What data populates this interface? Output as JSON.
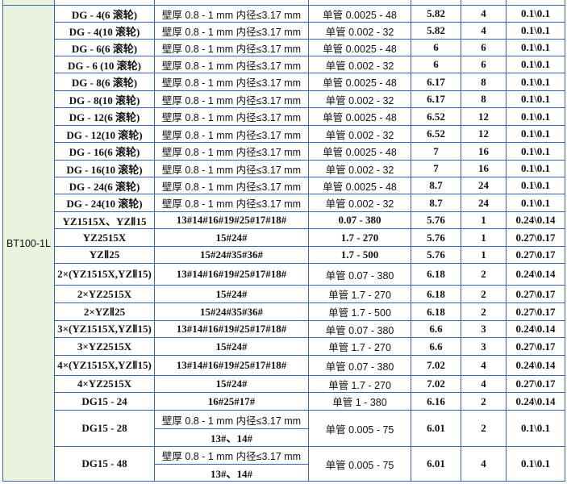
{
  "group_label": "BT100-1L",
  "rows": [
    {
      "model": "DG - 4(6 滚轮)",
      "spec": "壁厚 0.8 - 1 mm   内径≤3.17 mm",
      "range": "单管 0.0025 - 48",
      "v1": "5.82",
      "v2": "4",
      "v3": "0.1\\0.1"
    },
    {
      "model": "DG - 4(10 滚轮)",
      "spec": "壁厚 0.8 - 1 mm   内径≤3.17 mm",
      "range": "单管 0.002 - 32",
      "v1": "5.82",
      "v2": "4",
      "v3": "0.1\\0.1"
    },
    {
      "model": "DG - 6(6 滚轮)",
      "spec": "壁厚 0.8 - 1 mm   内径≤3.17 mm",
      "range": "单管 0.0025 - 48",
      "v1": "6",
      "v2": "6",
      "v3": "0.1\\0.1"
    },
    {
      "model": "DG - 6 (10 滚轮)",
      "spec": "壁厚 0.8 - 1 mm   内径≤3.17 mm",
      "range": "单管 0.002 - 32",
      "v1": "6",
      "v2": "6",
      "v3": "0.1\\0.1"
    },
    {
      "model": "DG - 8(6 滚轮)",
      "spec": "壁厚 0.8 - 1 mm   内径≤3.17 mm",
      "range": "单管 0.0025 - 48",
      "v1": "6.17",
      "v2": "8",
      "v3": "0.1\\0.1"
    },
    {
      "model": "DG - 8(10 滚轮)",
      "spec": "壁厚 0.8 - 1 mm   内径≤3.17 mm",
      "range": "单管 0.002 - 32",
      "v1": "6.17",
      "v2": "8",
      "v3": "0.1\\0.1"
    },
    {
      "model": "DG - 12(6 滚轮)",
      "spec": "壁厚 0.8 - 1 mm   内径≤3.17 mm",
      "range": "单管 0.0025 - 48",
      "v1": "6.52",
      "v2": "12",
      "v3": "0.1\\0.1"
    },
    {
      "model": "DG - 12(10 滚轮)",
      "spec": "壁厚 0.8 - 1 mm   内径≤3.17 mm",
      "range": "单管 0.002 - 32",
      "v1": "6.52",
      "v2": "12",
      "v3": "0.1\\0.1"
    },
    {
      "model": "DG - 16(6 滚轮)",
      "spec": "壁厚 0.8 - 1 mm   内径≤3.17 mm",
      "range": "单管 0.0025 - 48",
      "v1": "7",
      "v2": "16",
      "v3": "0.1\\0.1"
    },
    {
      "model": "DG - 16(10 滚轮)",
      "spec": "壁厚 0.8 - 1 mm   内径≤3.17 mm",
      "range": "单管 0.002 - 32",
      "v1": "7",
      "v2": "16",
      "v3": "0.1\\0.1"
    },
    {
      "model": "DG - 24(6 滚轮)",
      "spec": "壁厚 0.8 - 1 mm   内径≤3.17 mm",
      "range": "单管 0.0025 - 48",
      "v1": "8.7",
      "v2": "24",
      "v3": "0.1\\0.1"
    },
    {
      "model": "DG - 24(10 滚轮)",
      "spec": "壁厚 0.8 - 1 mm   内径≤3.17 mm",
      "range": "单管 0.002 - 32",
      "v1": "8.7",
      "v2": "24",
      "v3": "0.1\\0.1"
    },
    {
      "model": "YZ1515X、YZⅡ15",
      "spec": "13#14#16#19#25#17#18#",
      "range": "0.07 - 380",
      "v1": "5.76",
      "v2": "1",
      "v3": "0.24\\0.14"
    },
    {
      "model": "YZ2515X",
      "spec": "15#24#",
      "range": "1.7 - 270",
      "v1": "5.76",
      "v2": "1",
      "v3": "0.27\\0.17"
    },
    {
      "model": "YZⅡ25",
      "spec": "15#24#35#36#",
      "range": "1.7 - 500",
      "v1": "5.76",
      "v2": "1",
      "v3": "0.27\\0.17"
    },
    {
      "model": "2×(YZ1515X,YZⅡ15)",
      "spec": "13#14#16#19#25#17#18#",
      "range": "单管 0.07 - 380",
      "v1": "6.18",
      "v2": "2",
      "v3": "0.24\\0.14"
    },
    {
      "model": "2×YZ2515X",
      "spec": "15#24#",
      "range": "单管 1.7 - 270",
      "v1": "6.18",
      "v2": "2",
      "v3": "0.27\\0.17"
    },
    {
      "model": "2×YZⅡ25",
      "spec": "15#24#35#36#",
      "range": "单管 1.7 - 500",
      "v1": "6.18",
      "v2": "2",
      "v3": "0.27\\0.17"
    },
    {
      "model": "3×(YZ1515X,YZⅡ15)",
      "spec": "13#14#16#19#25#17#18#",
      "range": "单管 0.07 - 380",
      "v1": "6.6",
      "v2": "3",
      "v3": "0.24\\0.14"
    },
    {
      "model": "3×YZ2515X",
      "spec": "15#24#",
      "range": "单管 1.7 - 270",
      "v1": "6.6",
      "v2": "3",
      "v3": "0.27\\0.17"
    },
    {
      "model": "4×(YZ1515X,YZⅡ15)",
      "spec": "13#14#16#19#25#17#18#",
      "range": "单管 0.07 - 380",
      "v1": "7.02",
      "v2": "4",
      "v3": "0.24\\0.14"
    },
    {
      "model": "4×YZ2515X",
      "spec": "15#24#",
      "range": "单管 1.7 - 270",
      "v1": "7.02",
      "v2": "4",
      "v3": "0.27\\0.17"
    },
    {
      "model": "DG15 - 24",
      "spec": "16#25#17#",
      "range": "单管 1 - 380",
      "v1": "6.16",
      "v2": "2",
      "v3": "0.24\\0.14"
    },
    {
      "model": "DG15 - 28",
      "spec": "壁厚 0.8 - 1 mm   内径≤3.17 mm",
      "spec2": "13#、14#",
      "range": "单管 0.005 - 75",
      "v1": "6.01",
      "v2": "2",
      "v3": "0.1\\0.1"
    },
    {
      "model": "DG15 - 48",
      "spec": "壁厚 0.8 - 1 mm   内径≤3.17 mm",
      "spec2": "13#、14#",
      "range": "单管 0.005 - 75",
      "v1": "6.01",
      "v2": "4",
      "v3": "0.1\\0.1"
    }
  ]
}
